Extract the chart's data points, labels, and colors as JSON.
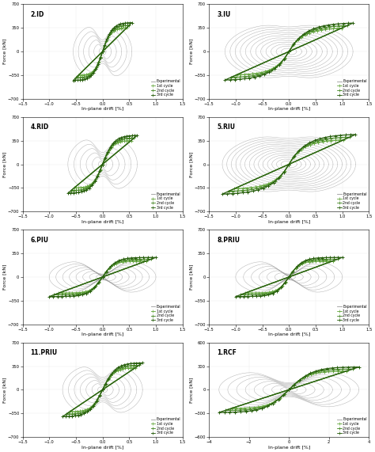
{
  "subplots": [
    {
      "title": "2.ID",
      "xlim": [
        -1.5,
        1.5
      ],
      "ylim": [
        -700,
        700
      ],
      "yticks": [
        -700,
        -350,
        0,
        350,
        700
      ],
      "xticks": [
        -1.5,
        -1.0,
        -0.5,
        0.0,
        0.5,
        1.0,
        1.5
      ],
      "max_drift": 0.55,
      "max_force": 430,
      "num_loops": 6,
      "shape": "narrow",
      "pinch": 0.6
    },
    {
      "title": "3.IU",
      "xlim": [
        -1.5,
        1.5
      ],
      "ylim": [
        -700,
        700
      ],
      "yticks": [
        -700,
        -350,
        0,
        350,
        700
      ],
      "xticks": [
        -1.5,
        -1.0,
        -0.5,
        0.0,
        0.5,
        1.0,
        1.5
      ],
      "max_drift": 1.2,
      "max_force": 430,
      "num_loops": 12,
      "shape": "wide",
      "pinch": 0.15
    },
    {
      "title": "4.RID",
      "xlim": [
        -1.5,
        1.5
      ],
      "ylim": [
        -700,
        700
      ],
      "yticks": [
        -700,
        -350,
        0,
        350,
        700
      ],
      "xticks": [
        -1.5,
        -1.0,
        -0.5,
        0.0,
        0.5,
        1.0,
        1.5
      ],
      "max_drift": 0.65,
      "max_force": 430,
      "num_loops": 6,
      "shape": "narrow",
      "pinch": 0.6
    },
    {
      "title": "5.RIU",
      "xlim": [
        -1.5,
        1.5
      ],
      "ylim": [
        -700,
        700
      ],
      "yticks": [
        -700,
        -350,
        0,
        350,
        700
      ],
      "xticks": [
        -1.5,
        -1.0,
        -0.5,
        0.0,
        0.5,
        1.0,
        1.5
      ],
      "max_drift": 1.25,
      "max_force": 450,
      "num_loops": 14,
      "shape": "wide",
      "pinch": 0.15
    },
    {
      "title": "6.PIU",
      "xlim": [
        -1.5,
        1.5
      ],
      "ylim": [
        -700,
        700
      ],
      "yticks": [
        -700,
        -350,
        0,
        350,
        700
      ],
      "xticks": [
        -1.5,
        -1.0,
        -0.5,
        0.0,
        0.5,
        1.0,
        1.5
      ],
      "max_drift": 1.0,
      "max_force": 290,
      "num_loops": 8,
      "shape": "flag",
      "pinch": 0.85
    },
    {
      "title": "8.PRIU",
      "xlim": [
        -1.5,
        1.5
      ],
      "ylim": [
        -700,
        700
      ],
      "yticks": [
        -700,
        -350,
        0,
        350,
        700
      ],
      "xticks": [
        -1.5,
        -1.0,
        -0.5,
        0.0,
        0.5,
        1.0,
        1.5
      ],
      "max_drift": 1.0,
      "max_force": 290,
      "num_loops": 7,
      "shape": "flag",
      "pinch": 0.85
    },
    {
      "title": "11.PRIU",
      "xlim": [
        -1.5,
        1.5
      ],
      "ylim": [
        -700,
        700
      ],
      "yticks": [
        -700,
        -350,
        0,
        350,
        700
      ],
      "xticks": [
        -1.5,
        -1.0,
        -0.5,
        0.0,
        0.5,
        1.0,
        1.5
      ],
      "max_drift": 0.75,
      "max_force": 400,
      "num_loops": 7,
      "shape": "narrow",
      "pinch": 0.55
    },
    {
      "title": "1.RCF",
      "xlim": [
        -4,
        4
      ],
      "ylim": [
        -600,
        600
      ],
      "yticks": [
        -600,
        -300,
        0,
        300,
        600
      ],
      "xticks": [
        -4,
        -2,
        0,
        2,
        4
      ],
      "max_drift": 3.5,
      "max_force": 290,
      "num_loops": 8,
      "shape": "rcf",
      "pinch": 0.7
    }
  ],
  "gray_color": "#999999",
  "envelope_colors": [
    "#6aaa44",
    "#4a8a2a",
    "#2a6010"
  ],
  "background_color": "#ffffff",
  "ylabel": "Force [kN]",
  "xlabel": "In-plane drift [%]",
  "legend_items": [
    "Experimental",
    "1st cycle",
    "2nd cycle",
    "3rd cycle"
  ]
}
